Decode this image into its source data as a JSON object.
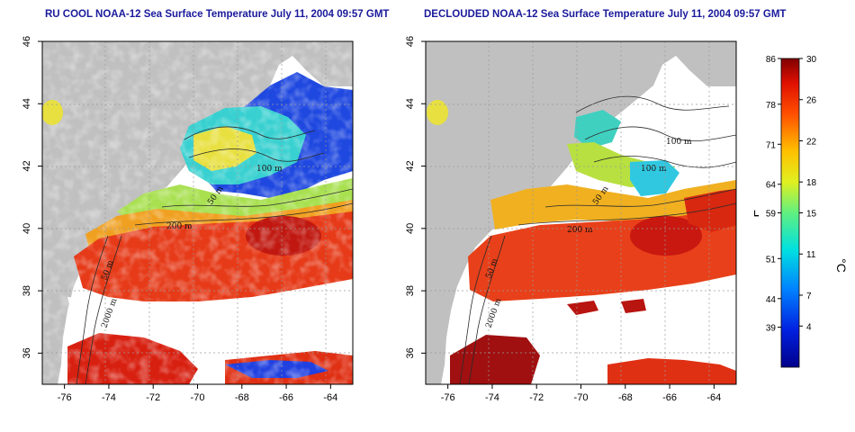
{
  "panels": [
    {
      "id": "left",
      "title": "RU COOL NOAA-12 Sea Surface Temperature July 11, 2004 09:57 GMT",
      "clouds": "white",
      "contours": [
        "100 m",
        "50 m",
        "200 m",
        "50 m",
        "2000 m"
      ]
    },
    {
      "id": "right",
      "title": "DECLOUDED NOAA-12 Sea Surface Temperature July 11, 2004 09:57 GMT",
      "clouds": "masked",
      "contours": [
        "100 m",
        "100 m",
        "50 m",
        "200 m",
        "50 m",
        "2000 m"
      ]
    }
  ],
  "axes": {
    "x_ticks": [
      "-76",
      "-74",
      "-72",
      "-70",
      "-68",
      "-66",
      "-64"
    ],
    "y_ticks": [
      "46",
      "44",
      "42",
      "40",
      "38",
      "36"
    ],
    "x_values": [
      -76,
      -74,
      -72,
      -70,
      -68,
      -66,
      -64
    ],
    "y_values": [
      46,
      44,
      42,
      40,
      38,
      36
    ],
    "lon_range": [
      -77,
      -63
    ],
    "lat_range": [
      35,
      46
    ]
  },
  "colorbar": {
    "fahrenheit_ticks": [
      "86",
      "78",
      "71",
      "64",
      "59",
      "51",
      "44",
      "39"
    ],
    "fahrenheit_values": [
      86,
      78,
      71,
      64,
      59,
      51,
      44,
      39
    ],
    "celsius_ticks": [
      "30",
      "26",
      "22",
      "18",
      "15",
      "11",
      "7",
      "4"
    ],
    "celsius_values": [
      30,
      26,
      22,
      18,
      15,
      11,
      7,
      4
    ],
    "label_f": "°F",
    "label_c": "°C",
    "range_c": [
      0,
      30
    ]
  },
  "colors": {
    "land": "#c0c0c0",
    "cloud": "#ffffff",
    "warm": "#d92a10",
    "hot": "#8a0a0a",
    "mid": "#f0d020",
    "cool": "#30c8c8",
    "cold": "#1030d0"
  }
}
